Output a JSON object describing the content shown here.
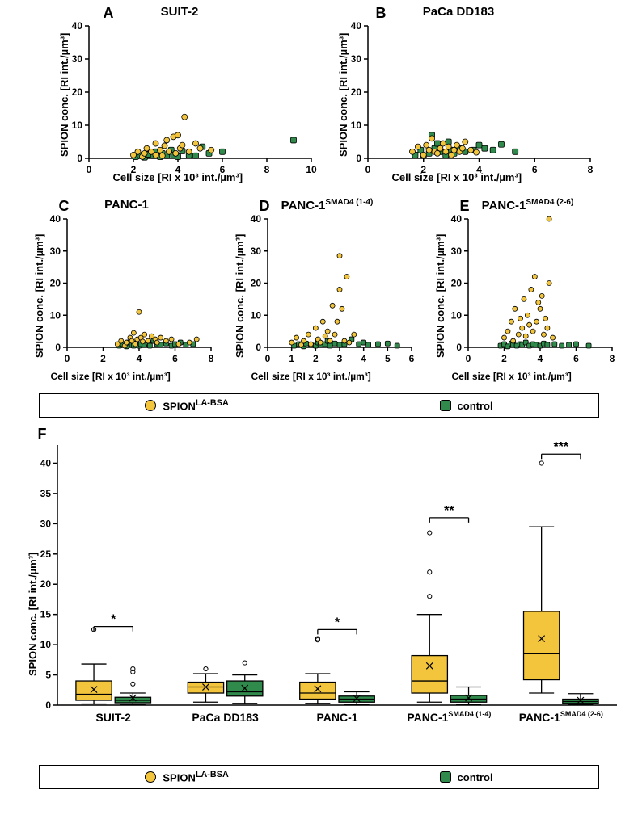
{
  "colors": {
    "spion": "#f2c53d",
    "control": "#2f8a4b",
    "marker_stroke": "#000000",
    "axis": "#000000",
    "bg": "#ffffff",
    "box_fill_spion": "#f2c53d",
    "box_fill_control": "#2f8a4b"
  },
  "typography": {
    "axis_label_fontsize": 13,
    "title_fontsize": 15,
    "tick_fontsize": 12,
    "panel_letter_fontsize": 18
  },
  "scatter_axis_label_y": "SPION conc. [RI int./µm³]",
  "scatter_axis_label_x": "Cell size [RI x 10³ int./µm³]",
  "legend": {
    "spion": "SPION",
    "spion_sup": "LA-BSA",
    "control": "control"
  },
  "panels": {
    "A": {
      "letter": "A",
      "title": "SUIT-2",
      "xlim": [
        0,
        10
      ],
      "xtick_step": 2,
      "ylim": [
        0,
        40
      ],
      "ytick_step": 10,
      "marker_r": 3.5,
      "spion_points": [
        [
          2.0,
          1.0
        ],
        [
          2.2,
          2.0
        ],
        [
          2.4,
          0.5
        ],
        [
          2.5,
          1.5
        ],
        [
          2.6,
          3.0
        ],
        [
          2.8,
          2.0
        ],
        [
          3.0,
          1.0
        ],
        [
          3.0,
          4.5
        ],
        [
          3.2,
          2.5
        ],
        [
          3.3,
          0.8
        ],
        [
          3.4,
          3.8
        ],
        [
          3.5,
          5.5
        ],
        [
          3.6,
          2.0
        ],
        [
          3.8,
          6.5
        ],
        [
          3.9,
          1.5
        ],
        [
          4.0,
          7.0
        ],
        [
          4.1,
          3.0
        ],
        [
          4.2,
          4.0
        ],
        [
          4.3,
          12.5
        ],
        [
          4.5,
          2.0
        ],
        [
          4.8,
          4.5
        ],
        [
          5.0,
          3.0
        ],
        [
          5.5,
          2.5
        ]
      ],
      "control_points": [
        [
          2.1,
          0.5
        ],
        [
          2.3,
          1.0
        ],
        [
          2.5,
          0.3
        ],
        [
          2.7,
          1.2
        ],
        [
          2.9,
          0.8
        ],
        [
          3.0,
          2.0
        ],
        [
          3.2,
          0.5
        ],
        [
          3.3,
          1.5
        ],
        [
          3.5,
          0.8
        ],
        [
          3.7,
          2.5
        ],
        [
          3.8,
          1.0
        ],
        [
          4.0,
          0.5
        ],
        [
          4.2,
          2.2
        ],
        [
          4.5,
          1.0
        ],
        [
          4.8,
          0.8
        ],
        [
          5.1,
          3.5
        ],
        [
          5.4,
          1.5
        ],
        [
          6.0,
          2.0
        ],
        [
          9.2,
          5.5
        ]
      ]
    },
    "B": {
      "letter": "B",
      "title": "PaCa DD183",
      "xlim": [
        0,
        8
      ],
      "xtick_step": 2,
      "ylim": [
        0,
        40
      ],
      "ytick_step": 10,
      "marker_r": 3.5,
      "spion_points": [
        [
          1.6,
          2.0
        ],
        [
          1.8,
          3.5
        ],
        [
          2.0,
          1.0
        ],
        [
          2.1,
          4.0
        ],
        [
          2.2,
          2.5
        ],
        [
          2.3,
          6.0
        ],
        [
          2.4,
          2.0
        ],
        [
          2.5,
          1.5
        ],
        [
          2.6,
          3.0
        ],
        [
          2.7,
          4.5
        ],
        [
          2.8,
          2.0
        ],
        [
          2.9,
          3.5
        ],
        [
          3.0,
          1.0
        ],
        [
          3.1,
          2.5
        ],
        [
          3.2,
          4.0
        ],
        [
          3.3,
          2.0
        ],
        [
          3.4,
          3.0
        ],
        [
          3.5,
          5.0
        ],
        [
          3.7,
          2.5
        ],
        [
          3.9,
          1.8
        ]
      ],
      "control_points": [
        [
          1.7,
          1.0
        ],
        [
          1.9,
          2.5
        ],
        [
          2.0,
          0.8
        ],
        [
          2.2,
          1.5
        ],
        [
          2.3,
          7.0
        ],
        [
          2.4,
          3.0
        ],
        [
          2.5,
          4.5
        ],
        [
          2.6,
          2.0
        ],
        [
          2.8,
          1.0
        ],
        [
          2.9,
          5.0
        ],
        [
          3.0,
          2.5
        ],
        [
          3.1,
          1.5
        ],
        [
          3.3,
          3.0
        ],
        [
          3.5,
          2.0
        ],
        [
          3.8,
          2.5
        ],
        [
          4.0,
          4.0
        ],
        [
          4.2,
          3.0
        ],
        [
          4.5,
          2.5
        ],
        [
          4.8,
          4.2
        ],
        [
          5.3,
          2.0
        ]
      ]
    },
    "C": {
      "letter": "C",
      "title": "PANC-1",
      "xlim": [
        0,
        8
      ],
      "xtick_step": 2,
      "ylim": [
        0,
        40
      ],
      "ytick_step": 10,
      "marker_r": 3.0,
      "spion_points": [
        [
          2.8,
          1.0
        ],
        [
          3.0,
          2.0
        ],
        [
          3.2,
          0.5
        ],
        [
          3.3,
          1.5
        ],
        [
          3.5,
          3.0
        ],
        [
          3.6,
          2.0
        ],
        [
          3.7,
          4.5
        ],
        [
          3.8,
          1.0
        ],
        [
          3.9,
          2.5
        ],
        [
          4.0,
          11.0
        ],
        [
          4.1,
          3.0
        ],
        [
          4.2,
          1.8
        ],
        [
          4.3,
          4.0
        ],
        [
          4.5,
          2.0
        ],
        [
          4.7,
          3.5
        ],
        [
          4.9,
          2.5
        ],
        [
          5.0,
          1.5
        ],
        [
          5.2,
          3.0
        ],
        [
          5.5,
          2.0
        ],
        [
          5.8,
          2.5
        ],
        [
          6.2,
          1.0
        ],
        [
          6.8,
          1.5
        ],
        [
          7.2,
          2.5
        ]
      ],
      "control_points": [
        [
          2.9,
          0.5
        ],
        [
          3.1,
          1.0
        ],
        [
          3.3,
          0.3
        ],
        [
          3.4,
          1.5
        ],
        [
          3.6,
          0.8
        ],
        [
          3.7,
          0.5
        ],
        [
          3.8,
          1.2
        ],
        [
          4.0,
          0.5
        ],
        [
          4.1,
          1.0
        ],
        [
          4.3,
          0.8
        ],
        [
          4.5,
          1.5
        ],
        [
          4.6,
          0.5
        ],
        [
          4.8,
          2.0
        ],
        [
          5.0,
          1.0
        ],
        [
          5.2,
          0.8
        ],
        [
          5.5,
          1.2
        ],
        [
          5.8,
          0.5
        ],
        [
          6.0,
          1.0
        ],
        [
          6.3,
          1.5
        ],
        [
          6.6,
          0.8
        ],
        [
          7.0,
          1.0
        ]
      ]
    },
    "D": {
      "letter": "D",
      "title": "PANC-1",
      "title_sup": "SMAD4 (1-4)",
      "xlim": [
        0,
        6
      ],
      "xtick_step": 1,
      "ylim": [
        0,
        40
      ],
      "ytick_step": 10,
      "marker_r": 3.0,
      "spion_points": [
        [
          1.0,
          1.5
        ],
        [
          1.2,
          3.0
        ],
        [
          1.4,
          0.8
        ],
        [
          1.5,
          2.0
        ],
        [
          1.7,
          4.0
        ],
        [
          1.8,
          1.0
        ],
        [
          2.0,
          6.0
        ],
        [
          2.1,
          2.5
        ],
        [
          2.2,
          1.5
        ],
        [
          2.3,
          8.0
        ],
        [
          2.4,
          3.5
        ],
        [
          2.5,
          5.0
        ],
        [
          2.6,
          2.0
        ],
        [
          2.7,
          13.0
        ],
        [
          2.8,
          4.0
        ],
        [
          2.9,
          8.0
        ],
        [
          3.0,
          18.0
        ],
        [
          3.0,
          28.5
        ],
        [
          3.1,
          12.0
        ],
        [
          3.2,
          2.0
        ],
        [
          3.3,
          22.0
        ],
        [
          3.4,
          1.5
        ],
        [
          3.6,
          4.0
        ]
      ],
      "control_points": [
        [
          1.1,
          0.5
        ],
        [
          1.3,
          1.0
        ],
        [
          1.5,
          0.3
        ],
        [
          1.6,
          1.2
        ],
        [
          1.8,
          0.8
        ],
        [
          2.0,
          0.5
        ],
        [
          2.1,
          1.5
        ],
        [
          2.2,
          0.8
        ],
        [
          2.4,
          1.0
        ],
        [
          2.5,
          2.0
        ],
        [
          2.6,
          0.5
        ],
        [
          2.8,
          1.2
        ],
        [
          3.0,
          0.8
        ],
        [
          3.2,
          1.0
        ],
        [
          3.5,
          2.5
        ],
        [
          3.8,
          1.0
        ],
        [
          4.0,
          1.5
        ],
        [
          4.2,
          0.8
        ],
        [
          4.6,
          1.0
        ],
        [
          5.0,
          1.2
        ],
        [
          5.4,
          0.5
        ]
      ]
    },
    "E": {
      "letter": "E",
      "title": "PANC-1",
      "title_sup": "SMAD4 (2-6)",
      "xlim": [
        0,
        8
      ],
      "xtick_step": 2,
      "ylim": [
        0,
        40
      ],
      "ytick_step": 10,
      "marker_r": 3.0,
      "spion_points": [
        [
          2.0,
          3.0
        ],
        [
          2.2,
          5.0
        ],
        [
          2.4,
          8.0
        ],
        [
          2.5,
          2.0
        ],
        [
          2.6,
          12.0
        ],
        [
          2.8,
          4.0
        ],
        [
          2.9,
          9.0
        ],
        [
          3.0,
          6.0
        ],
        [
          3.1,
          15.0
        ],
        [
          3.2,
          3.5
        ],
        [
          3.3,
          10.0
        ],
        [
          3.4,
          7.0
        ],
        [
          3.5,
          18.0
        ],
        [
          3.6,
          5.0
        ],
        [
          3.7,
          22.0
        ],
        [
          3.8,
          8.0
        ],
        [
          3.9,
          14.0
        ],
        [
          4.0,
          12.0
        ],
        [
          4.1,
          16.0
        ],
        [
          4.2,
          4.0
        ],
        [
          4.3,
          9.0
        ],
        [
          4.4,
          6.0
        ],
        [
          4.5,
          20.0
        ],
        [
          4.5,
          40.0
        ],
        [
          4.7,
          3.0
        ]
      ],
      "control_points": [
        [
          1.8,
          0.5
        ],
        [
          2.0,
          1.0
        ],
        [
          2.2,
          0.3
        ],
        [
          2.4,
          1.2
        ],
        [
          2.5,
          0.8
        ],
        [
          2.7,
          0.5
        ],
        [
          2.9,
          1.0
        ],
        [
          3.0,
          0.8
        ],
        [
          3.2,
          1.5
        ],
        [
          3.4,
          0.5
        ],
        [
          3.6,
          1.0
        ],
        [
          3.8,
          0.8
        ],
        [
          4.0,
          0.5
        ],
        [
          4.2,
          1.2
        ],
        [
          4.4,
          0.8
        ],
        [
          4.8,
          1.0
        ],
        [
          5.2,
          0.5
        ],
        [
          5.6,
          0.8
        ],
        [
          6.0,
          1.0
        ],
        [
          6.7,
          0.5
        ]
      ]
    }
  },
  "boxplot": {
    "letter": "F",
    "ylabel": "SPION conc. [RI int./µm³]",
    "ylim": [
      0,
      40
    ],
    "ytick_step": 5,
    "categories": [
      "SUIT-2",
      "PaCa DD183",
      "PANC-1",
      "PANC-1<sup>SMAD4 (1-4)</sup>",
      "PANC-1<sup>SMAD4 (2-6)</sup>"
    ],
    "box_width": 0.35,
    "groups": [
      {
        "spion": {
          "whisker_lo": 0.2,
          "q1": 0.8,
          "median": 1.8,
          "q3": 4.0,
          "whisker_hi": 6.8,
          "mean": 2.6,
          "outliers": [
            12.5
          ]
        },
        "control": {
          "whisker_lo": 0.1,
          "q1": 0.4,
          "median": 0.8,
          "q3": 1.3,
          "whisker_hi": 2.0,
          "mean": 1.2,
          "outliers": [
            3.5,
            5.5,
            6.0
          ]
        },
        "sig": "*",
        "sig_y": 13.0
      },
      {
        "spion": {
          "whisker_lo": 0.5,
          "q1": 2.0,
          "median": 3.0,
          "q3": 3.8,
          "whisker_hi": 5.2,
          "mean": 3.0,
          "outliers": [
            6.0
          ]
        },
        "control": {
          "whisker_lo": 0.3,
          "q1": 1.5,
          "median": 2.2,
          "q3": 4.0,
          "whisker_hi": 5.0,
          "mean": 2.8,
          "outliers": [
            7.0
          ]
        },
        "sig": null
      },
      {
        "spion": {
          "whisker_lo": 0.3,
          "q1": 1.0,
          "median": 2.0,
          "q3": 3.8,
          "whisker_hi": 5.2,
          "mean": 2.7,
          "outliers": [
            11.0,
            10.8
          ]
        },
        "control": {
          "whisker_lo": 0.1,
          "q1": 0.5,
          "median": 1.0,
          "q3": 1.5,
          "whisker_hi": 2.2,
          "mean": 1.1,
          "outliers": []
        },
        "sig": "*",
        "sig_y": 12.5
      },
      {
        "spion": {
          "whisker_lo": 0.5,
          "q1": 2.0,
          "median": 4.0,
          "q3": 8.2,
          "whisker_hi": 15.0,
          "mean": 6.5,
          "outliers": [
            18.0,
            22.0,
            28.5
          ]
        },
        "control": {
          "whisker_lo": 0.1,
          "q1": 0.5,
          "median": 1.0,
          "q3": 1.6,
          "whisker_hi": 3.0,
          "mean": 1.2,
          "outliers": []
        },
        "sig": "**",
        "sig_y": 31.0
      },
      {
        "spion": {
          "whisker_lo": 2.0,
          "q1": 4.2,
          "median": 8.5,
          "q3": 15.5,
          "whisker_hi": 29.5,
          "mean": 11.0,
          "outliers": [
            40.0
          ]
        },
        "control": {
          "whisker_lo": 0.1,
          "q1": 0.3,
          "median": 0.6,
          "q3": 1.0,
          "whisker_hi": 1.9,
          "mean": 0.8,
          "outliers": []
        },
        "sig": "***",
        "sig_y": 41.5
      }
    ]
  }
}
